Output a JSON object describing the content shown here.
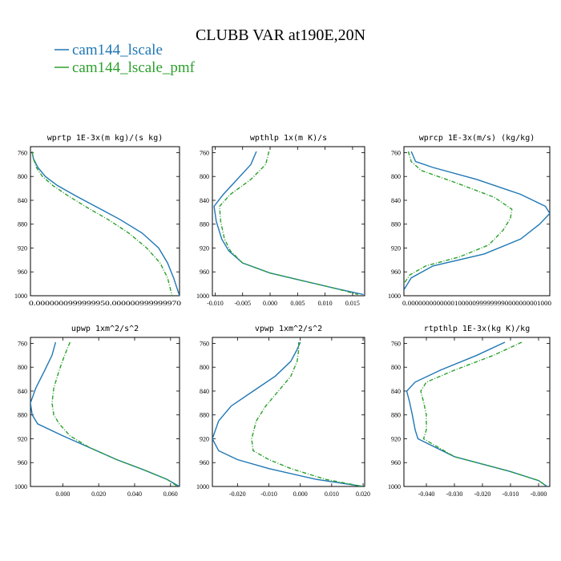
{
  "figure": {
    "title": "CLUBB VAR at190E,20N",
    "legend": [
      {
        "label": "cam144_lscale",
        "color": "#1f77b4",
        "style": "solid"
      },
      {
        "label": "cam144_lscale_pmf",
        "color": "#2ca02c",
        "style": "dashdot"
      }
    ]
  },
  "chart_data": [
    {
      "type": "line",
      "title": "wprtp  1E-3x(m kg)/(s kg)",
      "ylim": [
        1000,
        750
      ],
      "yticks": [
        760,
        800,
        840,
        880,
        920,
        960,
        1000
      ],
      "xlim": [
        0,
        1
      ],
      "xtick_labels_overlapped": "0.0000000999999950.000000999999970",
      "series": [
        {
          "name": "cam144_lscale",
          "x": [
            0.01,
            0.02,
            0.05,
            0.1,
            0.18,
            0.3,
            0.45,
            0.6,
            0.75,
            0.86,
            0.92,
            0.96,
            1.0
          ],
          "y": [
            758,
            770,
            785,
            800,
            815,
            832,
            852,
            872,
            895,
            920,
            945,
            970,
            1000
          ]
        },
        {
          "name": "cam144_lscale_pmf",
          "x": [
            0.01,
            0.02,
            0.04,
            0.08,
            0.15,
            0.25,
            0.38,
            0.52,
            0.66,
            0.78,
            0.87,
            0.92,
            0.95
          ],
          "y": [
            758,
            770,
            785,
            800,
            815,
            832,
            852,
            872,
            895,
            920,
            945,
            970,
            1000
          ]
        }
      ]
    },
    {
      "type": "line",
      "title": "wpthlp  1x(m K)/s",
      "ylim": [
        1000,
        750
      ],
      "yticks": [
        760,
        800,
        840,
        880,
        920,
        960,
        1000
      ],
      "xlim": [
        -0.0105,
        0.0172
      ],
      "xticks": [
        -0.01,
        -0.005,
        0.0,
        0.005,
        0.01,
        0.015
      ],
      "xtick_labels": [
        "-0.010",
        "-0.005",
        "0.000",
        "0.005",
        "0.010",
        "0.015"
      ],
      "series": [
        {
          "name": "cam144_lscale",
          "x": [
            -0.0025,
            -0.0035,
            -0.006,
            -0.0085,
            -0.0102,
            -0.0098,
            -0.0088,
            -0.0075,
            -0.005,
            0.0,
            0.006,
            0.012,
            0.017
          ],
          "y": [
            758,
            780,
            805,
            830,
            850,
            875,
            905,
            925,
            945,
            962,
            975,
            988,
            998
          ]
        },
        {
          "name": "cam144_lscale_pmf",
          "x": [
            -0.0002,
            -0.0008,
            -0.0035,
            -0.0072,
            -0.0092,
            -0.009,
            -0.0083,
            -0.0072,
            -0.005,
            0.0,
            0.006,
            0.012,
            0.016
          ],
          "y": [
            758,
            780,
            805,
            830,
            850,
            875,
            905,
            925,
            945,
            962,
            975,
            988,
            998
          ]
        }
      ]
    },
    {
      "type": "line",
      "title": "wprcp  1E-3x(m/s) (kg/kg)",
      "ylim": [
        1000,
        750
      ],
      "yticks": [
        760,
        800,
        840,
        880,
        920,
        960,
        1000
      ],
      "xlim": [
        0,
        1
      ],
      "xtick_labels_overlapped": "0.0000000000000100000999999990000000001000",
      "series": [
        {
          "name": "cam144_lscale",
          "x": [
            0.05,
            0.08,
            0.2,
            0.5,
            0.8,
            0.97,
            1.0,
            0.93,
            0.8,
            0.55,
            0.2,
            0.05,
            0.0
          ],
          "y": [
            758,
            775,
            785,
            805,
            830,
            850,
            862,
            880,
            905,
            930,
            950,
            970,
            990
          ]
        },
        {
          "name": "cam144_lscale_pmf",
          "x": [
            0.03,
            0.05,
            0.12,
            0.35,
            0.62,
            0.74,
            0.73,
            0.68,
            0.58,
            0.38,
            0.15,
            0.04,
            0.0
          ],
          "y": [
            758,
            775,
            790,
            810,
            835,
            855,
            870,
            890,
            915,
            935,
            950,
            965,
            980
          ]
        }
      ]
    },
    {
      "type": "line",
      "title": "upwp  1xm^2/s^2",
      "ylim": [
        1000,
        750
      ],
      "yticks": [
        760,
        800,
        840,
        880,
        920,
        960,
        1000
      ],
      "xlim": [
        -0.018,
        0.065
      ],
      "xticks": [
        0.0,
        0.02,
        0.04,
        0.06
      ],
      "xtick_labels": [
        "0.000",
        "0.020",
        "0.040",
        "0.060"
      ],
      "series": [
        {
          "name": "cam144_lscale",
          "x": [
            -0.004,
            -0.006,
            -0.01,
            -0.015,
            -0.018,
            -0.017,
            -0.014,
            0.0,
            0.015,
            0.03,
            0.045,
            0.058,
            0.065
          ],
          "y": [
            758,
            780,
            805,
            835,
            860,
            880,
            895,
            915,
            935,
            955,
            972,
            988,
            1000
          ]
        },
        {
          "name": "cam144_lscale_pmf",
          "x": [
            0.004,
            0.001,
            -0.002,
            -0.005,
            -0.006,
            -0.005,
            -0.002,
            0.004,
            0.015,
            0.03,
            0.045,
            0.058,
            0.064
          ],
          "y": [
            758,
            780,
            805,
            835,
            860,
            880,
            895,
            915,
            935,
            955,
            972,
            988,
            1000
          ]
        }
      ]
    },
    {
      "type": "line",
      "title": "vpwp  1xm^2/s^2",
      "ylim": [
        1000,
        750
      ],
      "yticks": [
        760,
        800,
        840,
        880,
        920,
        960,
        1000
      ],
      "xlim": [
        -0.028,
        0.0205
      ],
      "xticks": [
        -0.02,
        -0.01,
        0.0,
        0.01,
        0.02
      ],
      "xtick_labels": [
        "-0.020",
        "-0.010",
        "0.000",
        "0.010",
        "0.020"
      ],
      "series": [
        {
          "name": "cam144_lscale",
          "x": [
            0.0,
            -0.001,
            -0.003,
            -0.008,
            -0.015,
            -0.022,
            -0.026,
            -0.028,
            -0.026,
            -0.02,
            -0.01,
            0.005,
            0.02
          ],
          "y": [
            758,
            770,
            790,
            815,
            840,
            865,
            890,
            920,
            940,
            955,
            970,
            988,
            1000
          ]
        },
        {
          "name": "cam144_lscale_pmf",
          "x": [
            -0.0005,
            -0.0005,
            -0.001,
            -0.003,
            -0.007,
            -0.011,
            -0.014,
            -0.0155,
            -0.015,
            -0.01,
            -0.003,
            0.008,
            0.02
          ],
          "y": [
            758,
            770,
            790,
            815,
            840,
            865,
            890,
            920,
            940,
            955,
            970,
            988,
            1000
          ]
        }
      ]
    },
    {
      "type": "line",
      "title": "rtpthlp  1E-3x(kg K)/kg",
      "ylim": [
        1000,
        750
      ],
      "yticks": [
        760,
        800,
        840,
        880,
        920,
        960,
        1000
      ],
      "xlim": [
        -0.048,
        0.004
      ],
      "xticks": [
        -0.04,
        -0.03,
        -0.02,
        -0.01,
        0.0
      ],
      "xtick_labels": [
        "-0.040",
        "-0.030",
        "-0.020",
        "-0.010",
        "-0.000"
      ],
      "series": [
        {
          "name": "cam144_lscale",
          "x": [
            -0.012,
            -0.022,
            -0.035,
            -0.044,
            -0.047,
            -0.046,
            -0.045,
            -0.044,
            -0.043,
            -0.03,
            -0.01,
            0.0,
            0.003
          ],
          "y": [
            758,
            780,
            805,
            825,
            840,
            858,
            880,
            905,
            920,
            950,
            975,
            990,
            1000
          ]
        },
        {
          "name": "cam144_lscale_pmf",
          "x": [
            -0.006,
            -0.016,
            -0.03,
            -0.04,
            -0.042,
            -0.041,
            -0.04,
            -0.04,
            -0.041,
            -0.03,
            -0.01,
            0.0,
            0.003
          ],
          "y": [
            758,
            780,
            805,
            825,
            840,
            858,
            880,
            905,
            920,
            950,
            975,
            990,
            1000
          ]
        }
      ]
    }
  ]
}
